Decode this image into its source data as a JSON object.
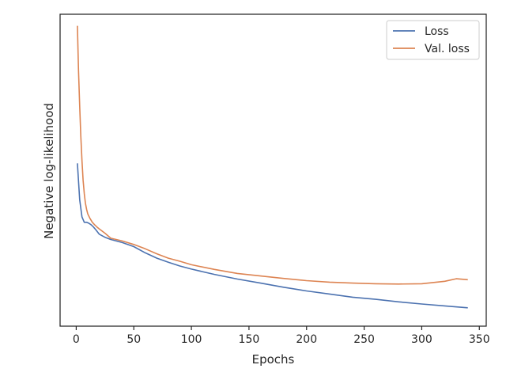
{
  "chart_data": {
    "type": "line",
    "title": "",
    "xlabel": "Epochs",
    "ylabel": "Negative log-likelihood",
    "xlim": [
      -14,
      356
    ],
    "ylim": [
      0,
      100
    ],
    "x_ticks": [
      0,
      50,
      100,
      150,
      200,
      250,
      300,
      350
    ],
    "y_tick_labels_shown": false,
    "grid": false,
    "legend": "upper right",
    "series": [
      {
        "name": "Loss",
        "color": "#4c72b0",
        "x": [
          1,
          3,
          5,
          7,
          9,
          11,
          13,
          15,
          17,
          20,
          25,
          30,
          40,
          50,
          60,
          70,
          80,
          90,
          100,
          120,
          140,
          160,
          180,
          200,
          220,
          240,
          260,
          280,
          300,
          320,
          340
        ],
        "y": [
          52.2,
          40.5,
          35.0,
          33.3,
          33.3,
          33.0,
          32.5,
          31.8,
          30.9,
          29.5,
          28.5,
          27.8,
          26.8,
          25.5,
          23.5,
          21.8,
          20.5,
          19.3,
          18.3,
          16.6,
          15.1,
          13.8,
          12.5,
          11.3,
          10.3,
          9.3,
          8.6,
          7.8,
          7.1,
          6.5,
          5.9
        ]
      },
      {
        "name": "Val. loss",
        "color": "#dd8452",
        "x": [
          1,
          2,
          3,
          4,
          5,
          6,
          7,
          8,
          9,
          10,
          12,
          14,
          16,
          18,
          20,
          25,
          30,
          40,
          50,
          60,
          70,
          80,
          90,
          100,
          120,
          140,
          160,
          180,
          200,
          220,
          240,
          260,
          280,
          300,
          320,
          330,
          340
        ],
        "y": [
          96.3,
          82.0,
          70.5,
          61.0,
          53.0,
          46.8,
          42.5,
          39.5,
          37.5,
          36.0,
          34.5,
          33.3,
          32.5,
          31.8,
          31.2,
          29.8,
          28.2,
          27.3,
          26.2,
          24.8,
          23.2,
          21.8,
          20.8,
          19.7,
          18.2,
          16.9,
          16.1,
          15.3,
          14.6,
          14.1,
          13.8,
          13.6,
          13.5,
          13.6,
          14.4,
          15.2,
          14.9
        ]
      }
    ]
  }
}
